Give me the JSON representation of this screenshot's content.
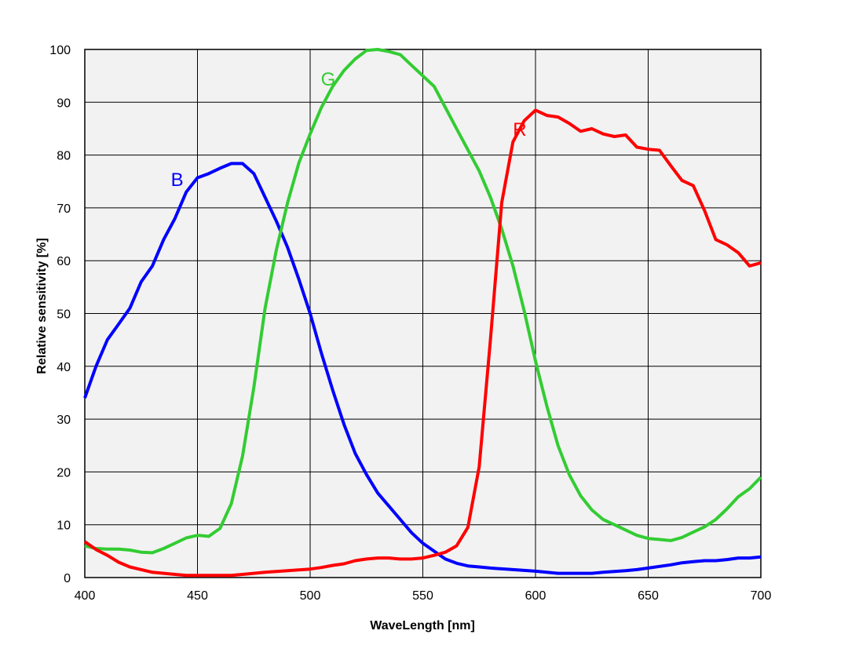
{
  "chart_data": {
    "type": "line",
    "title": "",
    "xlabel": "WaveLength [nm]",
    "ylabel": "Relative sensitivity [%]",
    "xlim": [
      400,
      700
    ],
    "ylim": [
      0,
      100
    ],
    "xticks": [
      400,
      450,
      500,
      550,
      600,
      650,
      700
    ],
    "yticks": [
      0,
      10,
      20,
      30,
      40,
      50,
      60,
      70,
      80,
      90,
      100
    ],
    "grid": true,
    "plot_background": "#f2f2f2",
    "series": [
      {
        "name": "B",
        "color": "#0000ff",
        "x": [
          400,
          405,
          410,
          415,
          420,
          425,
          430,
          435,
          440,
          445,
          450,
          455,
          460,
          465,
          470,
          475,
          480,
          485,
          490,
          495,
          500,
          505,
          510,
          515,
          520,
          525,
          530,
          535,
          540,
          545,
          550,
          555,
          560,
          565,
          570,
          575,
          580,
          590,
          600,
          610,
          620,
          625,
          630,
          640,
          645,
          650,
          660,
          665,
          670,
          675,
          680,
          685,
          690,
          695,
          700
        ],
        "y": [
          34,
          40,
          45,
          48,
          51,
          56,
          59,
          64,
          68,
          73,
          75.7,
          76.5,
          77.5,
          78.4,
          78.4,
          76.5,
          72,
          67.5,
          62.5,
          56.5,
          50,
          42.5,
          35.5,
          29,
          23.5,
          19.5,
          16,
          13.5,
          11,
          8.5,
          6.5,
          5,
          3.5,
          2.7,
          2.2,
          2,
          1.8,
          1.5,
          1.2,
          0.8,
          0.8,
          0.8,
          1,
          1.3,
          1.5,
          1.8,
          2.4,
          2.8,
          3,
          3.2,
          3.2,
          3.4,
          3.7,
          3.7,
          3.9
        ]
      },
      {
        "name": "G",
        "color": "#33cc33",
        "x": [
          400,
          405,
          410,
          415,
          420,
          425,
          430,
          435,
          440,
          445,
          450,
          455,
          460,
          465,
          470,
          475,
          480,
          485,
          490,
          495,
          500,
          505,
          510,
          515,
          520,
          525,
          530,
          535,
          540,
          545,
          550,
          555,
          560,
          565,
          570,
          575,
          580,
          585,
          590,
          595,
          600,
          605,
          610,
          615,
          620,
          625,
          630,
          635,
          640,
          645,
          650,
          655,
          660,
          665,
          670,
          675,
          680,
          685,
          690,
          695,
          700
        ],
        "y": [
          6,
          5.5,
          5.4,
          5.4,
          5.2,
          4.8,
          4.7,
          5.5,
          6.5,
          7.5,
          8,
          7.8,
          9.3,
          14,
          23,
          36,
          51,
          62,
          71,
          78.5,
          84,
          89,
          93,
          96,
          98.2,
          99.8,
          100,
          99.6,
          99,
          97,
          95,
          93,
          89,
          85,
          81,
          77,
          72,
          66,
          59,
          50.5,
          41,
          32.5,
          25,
          19.5,
          15.5,
          12.8,
          11,
          10,
          9,
          8,
          7.4,
          7.2,
          7,
          7.6,
          8.6,
          9.6,
          11,
          13,
          15.3,
          16.8,
          19
        ]
      },
      {
        "name": "R",
        "color": "#ff0000",
        "x": [
          400,
          405,
          410,
          415,
          420,
          425,
          430,
          435,
          440,
          445,
          450,
          460,
          465,
          470,
          480,
          490,
          500,
          505,
          510,
          515,
          520,
          525,
          530,
          535,
          540,
          545,
          550,
          555,
          560,
          565,
          570,
          575,
          580,
          585,
          590,
          595,
          600,
          605,
          610,
          615,
          620,
          625,
          630,
          635,
          640,
          645,
          650,
          655,
          660,
          665,
          670,
          675,
          680,
          685,
          690,
          695,
          700
        ],
        "y": [
          6.8,
          5.3,
          4.2,
          2.9,
          2,
          1.5,
          1,
          0.8,
          0.6,
          0.4,
          0.4,
          0.4,
          0.4,
          0.6,
          1,
          1.3,
          1.6,
          1.9,
          2.3,
          2.6,
          3.2,
          3.5,
          3.7,
          3.7,
          3.5,
          3.5,
          3.7,
          4.2,
          4.8,
          6,
          9.5,
          21,
          45,
          71,
          82.5,
          86.5,
          88.5,
          87.5,
          87.2,
          86,
          84.5,
          85,
          84,
          83.5,
          83.8,
          81.5,
          81.1,
          80.9,
          78,
          75.2,
          74.2,
          69.5,
          64,
          63,
          61.5,
          59,
          59.6
        ]
      }
    ],
    "annotations": [
      {
        "text": "B",
        "x": 441,
        "y": 75.5,
        "color": "#0000ff"
      },
      {
        "text": "G",
        "x": 508,
        "y": 94.5,
        "color": "#33cc33"
      },
      {
        "text": "R",
        "x": 593,
        "y": 85,
        "color": "#ff0000"
      }
    ]
  }
}
